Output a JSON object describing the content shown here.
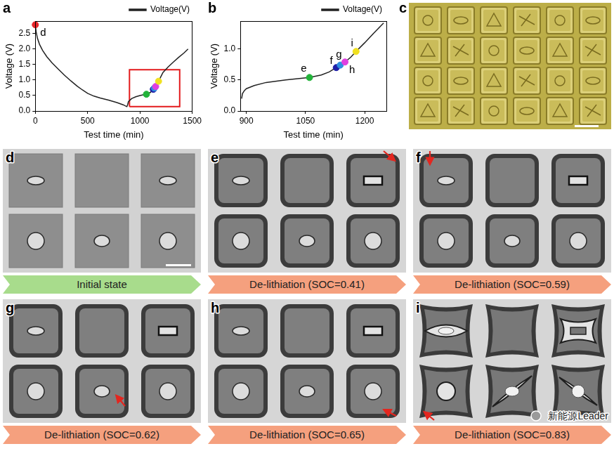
{
  "chart_data": [
    {
      "type": "line",
      "panel_label": "a",
      "x_label": "Test time (min)",
      "y_label": "Voltage (V)",
      "x": [
        0,
        8,
        20,
        40,
        70,
        110,
        160,
        220,
        280,
        340,
        400,
        450,
        500,
        560,
        620,
        700,
        780,
        840,
        875,
        882,
        890,
        920,
        960,
        1000,
        1030,
        1062,
        1100,
        1128,
        1138,
        1150,
        1165,
        1178,
        1220,
        1270,
        1320,
        1370,
        1420,
        1460
      ],
      "series": [
        {
          "name": "Voltage(V)",
          "color": "#222222",
          "values": [
            2.78,
            2.55,
            2.35,
            2.15,
            1.95,
            1.75,
            1.55,
            1.35,
            1.15,
            0.97,
            0.8,
            0.68,
            0.57,
            0.48,
            0.42,
            0.35,
            0.27,
            0.2,
            0.14,
            0.2,
            0.3,
            0.4,
            0.46,
            0.5,
            0.52,
            0.54,
            0.6,
            0.7,
            0.74,
            0.79,
            0.87,
            0.96,
            1.24,
            1.42,
            1.58,
            1.73,
            1.87,
            2.0
          ]
        }
      ],
      "markers": [
        {
          "label": "d",
          "x": 0,
          "y": 2.78,
          "color": "#e8262a"
        },
        {
          "x": 1062,
          "y": 0.54,
          "color": "#22b33a"
        },
        {
          "x": 1128,
          "y": 0.7,
          "color": "#1f1fa8"
        },
        {
          "x": 1138,
          "y": 0.74,
          "color": "#2f8fe0"
        },
        {
          "x": 1150,
          "y": 0.79,
          "color": "#e040e0"
        },
        {
          "x": 1178,
          "y": 0.96,
          "color": "#f0e020"
        }
      ],
      "highlight_box": {
        "x": [
          900,
          1380
        ],
        "y": [
          0.14,
          1.33
        ],
        "color": "#e31a1c"
      },
      "xlim": [
        0,
        1500
      ],
      "xticks": [
        0,
        500,
        1000,
        1500
      ],
      "ylim": [
        0,
        2.9
      ],
      "yticks": [
        {
          "value": 0,
          "label": "0.0"
        },
        {
          "value": 0.5,
          "label": "0.5"
        },
        {
          "value": 1,
          "label": "1.0"
        },
        {
          "value": 1.5,
          "label": "1.5"
        },
        {
          "value": 2,
          "label": "2.0"
        },
        {
          "value": 2.5,
          "label": "2.5"
        }
      ],
      "grid": false,
      "legend": "top-right"
    },
    {
      "type": "line",
      "panel_label": "b",
      "x_label": "Test time (min)",
      "y_label": "Voltage (V)",
      "x": [
        888,
        890,
        895,
        900,
        920,
        950,
        1000,
        1030,
        1060,
        1090,
        1110,
        1128,
        1138,
        1150,
        1165,
        1178,
        1200,
        1222,
        1248
      ],
      "series": [
        {
          "name": "Voltage(V)",
          "color": "#222222",
          "values": [
            0.2,
            0.28,
            0.33,
            0.36,
            0.41,
            0.46,
            0.5,
            0.52,
            0.54,
            0.58,
            0.63,
            0.7,
            0.74,
            0.79,
            0.87,
            0.96,
            1.1,
            1.25,
            1.42
          ]
        }
      ],
      "markers": [
        {
          "label": "e",
          "x": 1060,
          "y": 0.54,
          "color": "#22b33a"
        },
        {
          "label": "f",
          "x": 1128,
          "y": 0.7,
          "color": "#1f1fa8"
        },
        {
          "label": "g",
          "x": 1138,
          "y": 0.74,
          "color": "#2f8fe0"
        },
        {
          "label": "h",
          "x": 1150,
          "y": 0.79,
          "color": "#e040e0"
        },
        {
          "label": "i",
          "x": 1178,
          "y": 0.96,
          "color": "#f0e020"
        }
      ],
      "xlim": [
        885,
        1255
      ],
      "xticks": [
        900,
        1050,
        1200
      ],
      "ylim": [
        0,
        1.45
      ],
      "yticks": [
        {
          "value": 0,
          "label": "0.0"
        },
        {
          "value": 0.5,
          "label": "0.5"
        },
        {
          "value": 1,
          "label": "1.0"
        }
      ],
      "grid": false,
      "legend": "top-right"
    }
  ],
  "panels": [
    {
      "label": "c"
    },
    {
      "label": "d",
      "caption": "Initial state",
      "color": "#a8dc8c"
    },
    {
      "label": "e",
      "caption": "De-lithiation (SOC=0.41)",
      "color": "#f5a07e"
    },
    {
      "label": "f",
      "caption": "De-lithiation (SOC=0.59)",
      "color": "#f5a07e"
    },
    {
      "label": "g",
      "caption": "De-lithiation (SOC=0.62)",
      "color": "#f5a07e"
    },
    {
      "label": "h",
      "caption": "De-lithiation (SOC=0.65)",
      "color": "#f5a07e"
    },
    {
      "label": "i",
      "caption": "De-lithiation (SOC=0.83)",
      "color": "#f5a07e"
    }
  ],
  "watermark": "新能源Leader"
}
